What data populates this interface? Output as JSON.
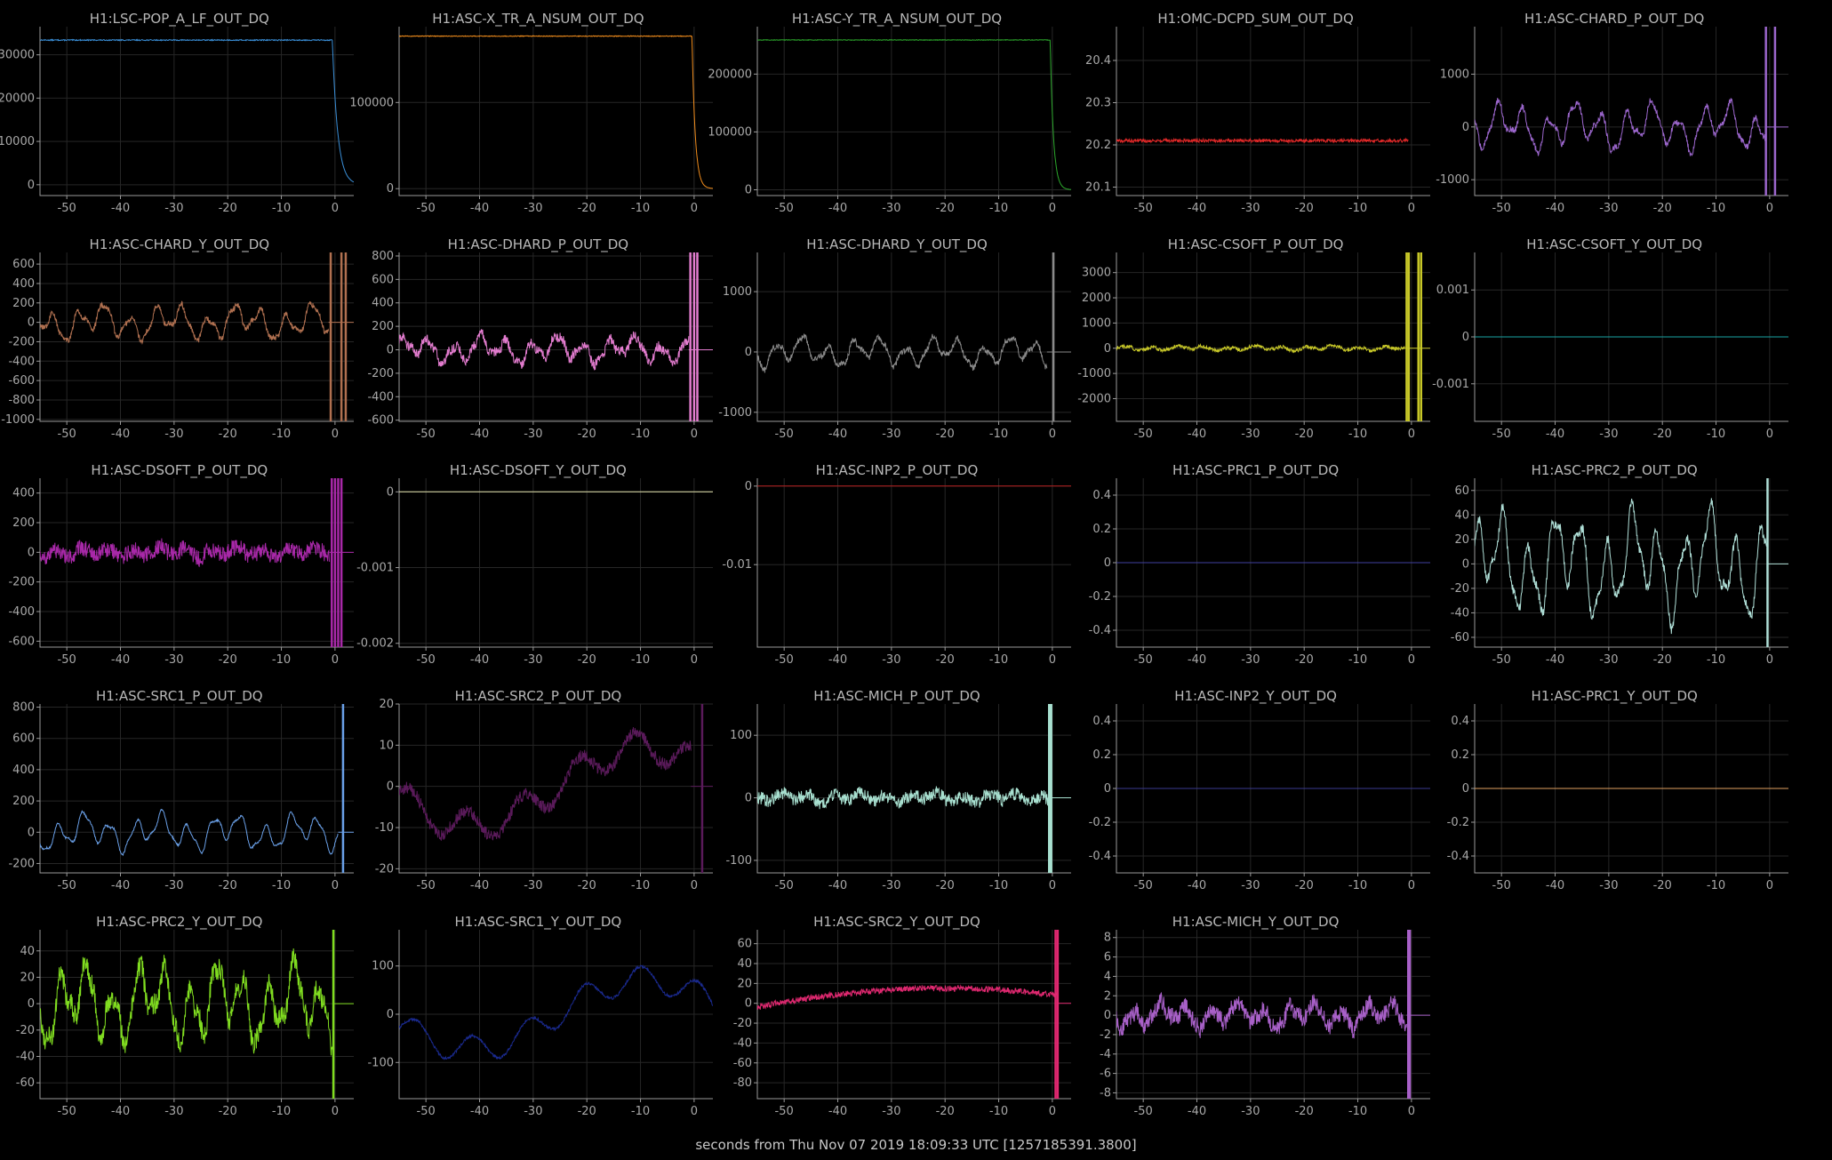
{
  "xlabel": "seconds from Thu Nov 07 2019 18:09:33 UTC [1257185391.3800]",
  "chart_data": [
    {
      "type": "line",
      "title": "H1:LSC-POP_A_LF_OUT_DQ",
      "color": "#3a8fd8",
      "xlim": [
        -55,
        3.5
      ],
      "ylim": [
        -2500,
        36500
      ],
      "yticks": [
        0,
        10000,
        20000,
        30000
      ],
      "ytick_labels": [
        "0",
        "10000",
        "20000",
        "30000"
      ],
      "xticks": [
        -50,
        -40,
        -30,
        -20,
        -10,
        0
      ],
      "xtick_labels": [
        "-50",
        "-40",
        "-30",
        "-20",
        "-10",
        "0"
      ],
      "grid": true,
      "shape": "drop",
      "base": 33400,
      "final": 0,
      "t0": -0.5,
      "tau": 1.0,
      "noise": 120
    },
    {
      "type": "line",
      "title": "H1:ASC-X_TR_A_NSUM_OUT_DQ",
      "color": "#f08c1c",
      "xlim": [
        -55,
        3.5
      ],
      "ylim": [
        -8000,
        188000
      ],
      "yticks": [
        0,
        100000
      ],
      "ytick_labels": [
        "0",
        "100000"
      ],
      "xticks": [
        -50,
        -40,
        -30,
        -20,
        -10,
        0
      ],
      "xtick_labels": [
        "-50",
        "-40",
        "-30",
        "-20",
        "-10",
        "0"
      ],
      "grid": true,
      "shape": "drop",
      "base": 177000,
      "final": 0,
      "t0": -0.4,
      "tau": 0.6,
      "noise": 400
    },
    {
      "type": "line",
      "title": "H1:ASC-Y_TR_A_NSUM_OUT_DQ",
      "color": "#2ca82c",
      "xlim": [
        -55,
        3.5
      ],
      "ylim": [
        -10000,
        282000
      ],
      "yticks": [
        0,
        100000,
        200000
      ],
      "ytick_labels": [
        "0",
        "100000",
        "200000"
      ],
      "xticks": [
        -50,
        -40,
        -30,
        -20,
        -10,
        0
      ],
      "xtick_labels": [
        "-50",
        "-40",
        "-30",
        "-20",
        "-10",
        "0"
      ],
      "grid": true,
      "shape": "drop",
      "base": 259000,
      "final": 0,
      "t0": -0.4,
      "tau": 0.6,
      "noise": 500
    },
    {
      "type": "line",
      "title": "H1:OMC-DCPD_SUM_OUT_DQ",
      "color": "#e02828",
      "xlim": [
        -55,
        3.5
      ],
      "ylim": [
        20.08,
        20.48
      ],
      "yticks": [
        20.1,
        20.2,
        20.3,
        20.4
      ],
      "ytick_labels": [
        "20.1",
        "20.2",
        "20.3",
        "20.4"
      ],
      "xticks": [
        -50,
        -40,
        -30,
        -20,
        -10,
        0
      ],
      "xtick_labels": [
        "-50",
        "-40",
        "-30",
        "-20",
        "-10",
        "0"
      ],
      "grid": true,
      "shape": "noise",
      "base": 20.21,
      "noise": 0.004,
      "end_x": -0.6,
      "spike_x": -0.6
    },
    {
      "type": "line",
      "title": "H1:ASC-CHARD_P_OUT_DQ",
      "color": "#9b66cc",
      "xlim": [
        -55,
        3.5
      ],
      "ylim": [
        -1300,
        1900
      ],
      "yticks": [
        -1000,
        0,
        1000
      ],
      "ytick_labels": [
        "-1000",
        "0",
        "1000"
      ],
      "xticks": [
        -50,
        -40,
        -30,
        -20,
        -10,
        0
      ],
      "xtick_labels": [
        "-50",
        "-40",
        "-30",
        "-20",
        "-10",
        "0"
      ],
      "grid": true,
      "shape": "osc",
      "amp": 420,
      "noise": 60,
      "end_x": -0.8,
      "spikes": [
        -0.7,
        1.0
      ]
    },
    {
      "type": "line",
      "title": "H1:ASC-CHARD_Y_OUT_DQ",
      "color": "#b07050",
      "xlim": [
        -55,
        3.5
      ],
      "ylim": [
        -1020,
        720
      ],
      "yticks": [
        -1000,
        -800,
        -600,
        -400,
        -200,
        0,
        200,
        400,
        600
      ],
      "ytick_labels": [
        "-1000",
        "-800",
        "-600",
        "-400",
        "-200",
        "0",
        "200",
        "400",
        "600"
      ],
      "xticks": [
        -50,
        -40,
        -30,
        -20,
        -10,
        0
      ],
      "xtick_labels": [
        "-50",
        "-40",
        "-30",
        "-20",
        "-10",
        "0"
      ],
      "grid": true,
      "shape": "osc",
      "amp": 170,
      "noise": 30,
      "end_x": -1.2,
      "spikes": [
        -0.8,
        1.2,
        2.0
      ]
    },
    {
      "type": "line",
      "title": "H1:ASC-DHARD_P_OUT_DQ",
      "color": "#e37ccf",
      "xlim": [
        -55,
        3.5
      ],
      "ylim": [
        -610,
        830
      ],
      "yticks": [
        -600,
        -400,
        -200,
        0,
        200,
        400,
        600,
        800
      ],
      "ytick_labels": [
        "-600",
        "-400",
        "-200",
        "0",
        "200",
        "400",
        "600",
        "800"
      ],
      "xticks": [
        -50,
        -40,
        -30,
        -20,
        -10,
        0
      ],
      "xtick_labels": [
        "-50",
        "-40",
        "-30",
        "-20",
        "-10",
        "0"
      ],
      "grid": true,
      "shape": "osc",
      "amp": 110,
      "noise": 45,
      "end_x": -1.0,
      "spikes": [
        -0.7,
        0.0,
        0.6
      ]
    },
    {
      "type": "line",
      "title": "H1:ASC-DHARD_Y_OUT_DQ",
      "color": "#8a8a8a",
      "xlim": [
        -55,
        3.5
      ],
      "ylim": [
        -1150,
        1650
      ],
      "yticks": [
        -1000,
        0,
        1000
      ],
      "ytick_labels": [
        "-1000",
        "0",
        "1000"
      ],
      "xticks": [
        -50,
        -40,
        -30,
        -20,
        -10,
        0
      ],
      "xtick_labels": [
        "-50",
        "-40",
        "-30",
        "-20",
        "-10",
        "0"
      ],
      "grid": true,
      "shape": "osc",
      "amp": 230,
      "noise": 50,
      "end_x": -1.0,
      "spikes": [
        0.2
      ]
    },
    {
      "type": "line",
      "title": "H1:ASC-CSOFT_P_OUT_DQ",
      "color": "#c8c828",
      "xlim": [
        -55,
        3.5
      ],
      "ylim": [
        -2900,
        3800
      ],
      "yticks": [
        -2000,
        -1000,
        0,
        1000,
        2000,
        3000
      ],
      "ytick_labels": [
        "-2000",
        "-1000",
        "0",
        "1000",
        "2000",
        "3000"
      ],
      "xticks": [
        -50,
        -40,
        -30,
        -20,
        -10,
        0
      ],
      "xtick_labels": [
        "-50",
        "-40",
        "-30",
        "-20",
        "-10",
        "0"
      ],
      "grid": true,
      "shape": "osc",
      "amp": 90,
      "noise": 70,
      "end_x": -1.3,
      "spikes": [
        -0.9,
        -0.5,
        1.3,
        1.8
      ]
    },
    {
      "type": "line",
      "title": "H1:ASC-CSOFT_Y_OUT_DQ",
      "color": "#1aa3a3",
      "xlim": [
        -55,
        3.5
      ],
      "ylim": [
        -0.0018,
        0.0018
      ],
      "yticks": [
        -0.001,
        0,
        0.001
      ],
      "ytick_labels": [
        "-0.001",
        "0",
        "0.001"
      ],
      "xticks": [
        -50,
        -40,
        -30,
        -20,
        -10,
        0
      ],
      "xtick_labels": [
        "-50",
        "-40",
        "-30",
        "-20",
        "-10",
        "0"
      ],
      "grid": true,
      "shape": "flat",
      "base": 0
    },
    {
      "type": "line",
      "title": "H1:ASC-DSOFT_P_OUT_DQ",
      "color": "#a828a8",
      "xlim": [
        -55,
        3.5
      ],
      "ylim": [
        -640,
        500
      ],
      "yticks": [
        -600,
        -400,
        -200,
        0,
        200,
        400
      ],
      "ytick_labels": [
        "-600",
        "-400",
        "-200",
        "0",
        "200",
        "400"
      ],
      "xticks": [
        -50,
        -40,
        -30,
        -20,
        -10,
        0
      ],
      "xtick_labels": [
        "-50",
        "-40",
        "-30",
        "-20",
        "-10",
        "0"
      ],
      "grid": true,
      "shape": "osc",
      "amp": 35,
      "noise": 55,
      "end_x": -1.0,
      "spikes": [
        -0.6,
        0.0,
        0.6,
        1.2
      ]
    },
    {
      "type": "line",
      "title": "H1:ASC-DSOFT_Y_OUT_DQ",
      "color": "#e8e8b0",
      "xlim": [
        -55,
        3.5
      ],
      "ylim": [
        -0.00205,
        0.00018
      ],
      "yticks": [
        -0.002,
        -0.001,
        0
      ],
      "ytick_labels": [
        "-0.002",
        "-0.001",
        "0"
      ],
      "xticks": [
        -50,
        -40,
        -30,
        -20,
        -10,
        0
      ],
      "xtick_labels": [
        "-50",
        "-40",
        "-30",
        "-20",
        "-10",
        "0"
      ],
      "grid": true,
      "shape": "flat",
      "base": 0
    },
    {
      "type": "line",
      "title": "H1:ASC-INP2_P_OUT_DQ",
      "color": "#b82020",
      "xlim": [
        -55,
        3.5
      ],
      "ylim": [
        -0.0205,
        0.001
      ],
      "yticks": [
        -0.01,
        0
      ],
      "ytick_labels": [
        "-0.01",
        "0"
      ],
      "xticks": [
        -50,
        -40,
        -30,
        -20,
        -10,
        0
      ],
      "xtick_labels": [
        "-50",
        "-40",
        "-30",
        "-20",
        "-10",
        "0"
      ],
      "grid": true,
      "shape": "flat",
      "base": 0
    },
    {
      "type": "line",
      "title": "H1:ASC-PRC1_P_OUT_DQ",
      "color": "#4040a0",
      "xlim": [
        -55,
        3.5
      ],
      "ylim": [
        -0.5,
        0.5
      ],
      "yticks": [
        -0.4,
        -0.2,
        0,
        0.2,
        0.4
      ],
      "ytick_labels": [
        "-0.4",
        "-0.2",
        "0",
        "0.2",
        "0.4"
      ],
      "xticks": [
        -50,
        -40,
        -30,
        -20,
        -10,
        0
      ],
      "xtick_labels": [
        "-50",
        "-40",
        "-30",
        "-20",
        "-10",
        "0"
      ],
      "grid": true,
      "shape": "flat",
      "base": 0
    },
    {
      "type": "line",
      "title": "H1:ASC-PRC2_P_OUT_DQ",
      "color": "#b0e0d8",
      "xlim": [
        -55,
        3.5
      ],
      "ylim": [
        -68,
        70
      ],
      "yticks": [
        -60,
        -40,
        -20,
        0,
        20,
        40,
        60
      ],
      "ytick_labels": [
        "-60",
        "-40",
        "-20",
        "0",
        "20",
        "40",
        "60"
      ],
      "xticks": [
        -50,
        -40,
        -30,
        -20,
        -10,
        0
      ],
      "xtick_labels": [
        "-50",
        "-40",
        "-30",
        "-20",
        "-10",
        "0"
      ],
      "grid": true,
      "shape": "osc",
      "amp": 40,
      "noise": 4,
      "end_x": -0.5,
      "spikes": [
        -0.4
      ]
    },
    {
      "type": "line",
      "title": "H1:ASC-SRC1_P_OUT_DQ",
      "color": "#6aa0e8",
      "xlim": [
        -55,
        3.5
      ],
      "ylim": [
        -260,
        820
      ],
      "yticks": [
        -200,
        0,
        200,
        400,
        600,
        800
      ],
      "ytick_labels": [
        "-200",
        "0",
        "200",
        "400",
        "600",
        "800"
      ],
      "xticks": [
        -50,
        -40,
        -30,
        -20,
        -10,
        0
      ],
      "xtick_labels": [
        "-50",
        "-40",
        "-30",
        "-20",
        "-10",
        "0"
      ],
      "grid": true,
      "shape": "osc",
      "amp": 110,
      "noise": 6,
      "end_x": 0.6,
      "spikes": [
        1.5
      ]
    },
    {
      "type": "line",
      "title": "H1:ASC-SRC2_P_OUT_DQ",
      "color": "#5a1a5a",
      "xlim": [
        -55,
        3.5
      ],
      "ylim": [
        -21,
        20
      ],
      "yticks": [
        -20,
        -10,
        0,
        10,
        20
      ],
      "ytick_labels": [
        "-20",
        "-10",
        "0",
        "10",
        "20"
      ],
      "xticks": [
        -50,
        -40,
        -30,
        -20,
        -10,
        0
      ],
      "xtick_labels": [
        "-50",
        "-40",
        "-30",
        "-20",
        "-10",
        "0"
      ],
      "grid": true,
      "shape": "wave",
      "amp": 12,
      "noise": 1.5,
      "end_x": -0.6,
      "spikes": [
        1.5
      ]
    },
    {
      "type": "line",
      "title": "H1:ASC-MICH_P_OUT_DQ",
      "color": "#a8e0d0",
      "xlim": [
        -55,
        3.5
      ],
      "ylim": [
        -120,
        150
      ],
      "yticks": [
        -100,
        0,
        100
      ],
      "ytick_labels": [
        "-100",
        "0",
        "100"
      ],
      "xticks": [
        -50,
        -40,
        -30,
        -20,
        -10,
        0
      ],
      "xtick_labels": [
        "-50",
        "-40",
        "-30",
        "-20",
        "-10",
        "0"
      ],
      "grid": true,
      "shape": "osc",
      "amp": 8,
      "noise": 10,
      "end_x": -0.8,
      "spikes": [
        -0.6,
        -0.2
      ]
    },
    {
      "type": "line",
      "title": "H1:ASC-INP2_Y_OUT_DQ",
      "color": "#3a3a90",
      "xlim": [
        -55,
        3.5
      ],
      "ylim": [
        -0.5,
        0.5
      ],
      "yticks": [
        -0.4,
        -0.2,
        0,
        0.2,
        0.4
      ],
      "ytick_labels": [
        "-0.4",
        "-0.2",
        "0",
        "0.2",
        "0.4"
      ],
      "xticks": [
        -50,
        -40,
        -30,
        -20,
        -10,
        0
      ],
      "xtick_labels": [
        "-50",
        "-40",
        "-30",
        "-20",
        "-10",
        "0"
      ],
      "grid": true,
      "shape": "flat",
      "base": 0
    },
    {
      "type": "line",
      "title": "H1:ASC-PRC1_Y_OUT_DQ",
      "color": "#e0a060",
      "xlim": [
        -55,
        3.5
      ],
      "ylim": [
        -0.5,
        0.5
      ],
      "yticks": [
        -0.4,
        -0.2,
        0,
        0.2,
        0.4
      ],
      "ytick_labels": [
        "-0.4",
        "-0.2",
        "0",
        "0.2",
        "0.4"
      ],
      "xticks": [
        -50,
        -40,
        -30,
        -20,
        -10,
        0
      ],
      "xtick_labels": [
        "-50",
        "-40",
        "-30",
        "-20",
        "-10",
        "0"
      ],
      "grid": true,
      "shape": "flat",
      "base": 0
    },
    {
      "type": "line",
      "title": "H1:ASC-PRC2_Y_OUT_DQ",
      "color": "#80dd20",
      "xlim": [
        -55,
        3.5
      ],
      "ylim": [
        -72,
        56
      ],
      "yticks": [
        -60,
        -40,
        -20,
        0,
        20,
        40
      ],
      "ytick_labels": [
        "-60",
        "-40",
        "-20",
        "0",
        "20",
        "40"
      ],
      "xticks": [
        -50,
        -40,
        -30,
        -20,
        -10,
        0
      ],
      "xtick_labels": [
        "-50",
        "-40",
        "-30",
        "-20",
        "-10",
        "0"
      ],
      "grid": true,
      "shape": "osc",
      "amp": 28,
      "noise": 8,
      "end_x": -0.5,
      "spikes": [
        -0.3
      ]
    },
    {
      "type": "line",
      "title": "H1:ASC-SRC1_Y_OUT_DQ",
      "color": "#1a2a90",
      "xlim": [
        -55,
        3.5
      ],
      "ylim": [
        -175,
        175
      ],
      "yticks": [
        -100,
        0,
        100
      ],
      "ytick_labels": [
        "-100",
        "0",
        "100"
      ],
      "xticks": [
        -50,
        -40,
        -30,
        -20,
        -10,
        0
      ],
      "xtick_labels": [
        "-50",
        "-40",
        "-30",
        "-20",
        "-10",
        "0"
      ],
      "grid": true,
      "shape": "wave",
      "amp": 90,
      "noise": 3,
      "end_x": 3.5
    },
    {
      "type": "line",
      "title": "H1:ASC-SRC2_Y_OUT_DQ",
      "color": "#e02870",
      "xlim": [
        -55,
        3.5
      ],
      "ylim": [
        -96,
        74
      ],
      "yticks": [
        -80,
        -60,
        -40,
        -20,
        0,
        20,
        40,
        60
      ],
      "ytick_labels": [
        "-80",
        "-60",
        "-40",
        "-20",
        "0",
        "20",
        "40",
        "60"
      ],
      "xticks": [
        -50,
        -40,
        -30,
        -20,
        -10,
        0
      ],
      "xtick_labels": [
        "-50",
        "-40",
        "-30",
        "-20",
        "-10",
        "0"
      ],
      "grid": true,
      "shape": "arch",
      "amp": 20,
      "noise": 3,
      "end_x": 1.0,
      "spikes": [
        0.6,
        1.0
      ]
    },
    {
      "type": "line",
      "title": "H1:ASC-MICH_Y_OUT_DQ",
      "color": "#a860c8",
      "xlim": [
        -55,
        3.5
      ],
      "ylim": [
        -8.6,
        8.8
      ],
      "yticks": [
        -8,
        -6,
        -4,
        -2,
        0,
        2,
        4,
        6,
        8
      ],
      "ytick_labels": [
        "-8",
        "-6",
        "-4",
        "-2",
        "0",
        "2",
        "4",
        "6",
        "8"
      ],
      "xticks": [
        -50,
        -40,
        -30,
        -20,
        -10,
        0
      ],
      "xtick_labels": [
        "-50",
        "-40",
        "-30",
        "-20",
        "-10",
        "0"
      ],
      "grid": true,
      "shape": "osc",
      "amp": 1.2,
      "noise": 0.9,
      "end_x": -0.9,
      "spikes": [
        -0.6,
        -0.3
      ]
    }
  ]
}
